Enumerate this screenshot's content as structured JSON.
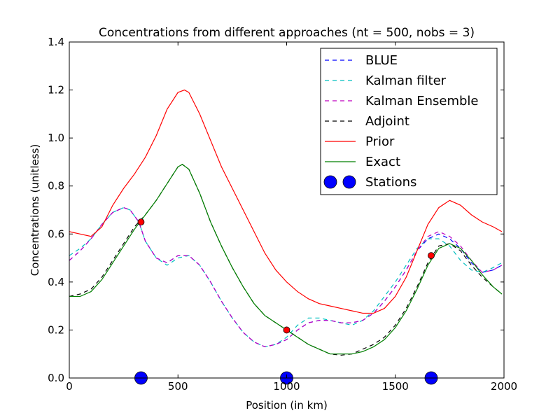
{
  "chart_data": {
    "type": "line",
    "title": "Concentrations from different approaches (nt = 500, nobs = 3)",
    "xlabel": "Position (in km)",
    "ylabel": "Concentrations (unitless)",
    "xlim": [
      0,
      2000
    ],
    "ylim": [
      0,
      1.4
    ],
    "xticks": [
      0,
      500,
      1000,
      1500,
      2000
    ],
    "xtick_labels": [
      "0",
      "500",
      "1000",
      "1500",
      "2000"
    ],
    "yticks": [
      0.0,
      0.2,
      0.4,
      0.6,
      0.8,
      1.0,
      1.2,
      1.4
    ],
    "ytick_labels": [
      "0.0",
      "0.2",
      "0.4",
      "0.6",
      "0.8",
      "1.0",
      "1.2",
      "1.4"
    ],
    "grid": false,
    "legend_position": "top-right",
    "series": [
      {
        "name": "BLUE",
        "color": "#0000ff",
        "style": "dashed",
        "x": [
          0,
          50,
          100,
          150,
          200,
          250,
          280,
          320,
          350,
          400,
          450,
          500,
          550,
          600,
          650,
          700,
          750,
          800,
          850,
          900,
          950,
          1000,
          1050,
          1100,
          1150,
          1200,
          1250,
          1300,
          1350,
          1400,
          1450,
          1500,
          1550,
          1600,
          1650,
          1700,
          1750,
          1800,
          1850,
          1900,
          1950,
          1990
        ],
        "y": [
          0.49,
          0.53,
          0.58,
          0.64,
          0.69,
          0.71,
          0.7,
          0.65,
          0.57,
          0.5,
          0.48,
          0.51,
          0.51,
          0.47,
          0.4,
          0.32,
          0.25,
          0.19,
          0.15,
          0.13,
          0.14,
          0.16,
          0.2,
          0.23,
          0.24,
          0.24,
          0.23,
          0.23,
          0.24,
          0.27,
          0.32,
          0.38,
          0.45,
          0.53,
          0.58,
          0.6,
          0.58,
          0.54,
          0.48,
          0.44,
          0.45,
          0.47
        ]
      },
      {
        "name": "Kalman filter",
        "color": "#00bfbf",
        "style": "dashed",
        "x": [
          0,
          50,
          100,
          150,
          200,
          250,
          280,
          320,
          350,
          400,
          450,
          500,
          550,
          600,
          650,
          700,
          750,
          800,
          850,
          900,
          950,
          1000,
          1050,
          1100,
          1150,
          1200,
          1250,
          1300,
          1350,
          1400,
          1450,
          1500,
          1550,
          1600,
          1650,
          1700,
          1750,
          1800,
          1850,
          1900,
          1950,
          1990
        ],
        "y": [
          0.51,
          0.54,
          0.58,
          0.64,
          0.69,
          0.71,
          0.7,
          0.65,
          0.57,
          0.5,
          0.47,
          0.5,
          0.51,
          0.47,
          0.4,
          0.32,
          0.25,
          0.19,
          0.15,
          0.13,
          0.14,
          0.17,
          0.22,
          0.25,
          0.25,
          0.24,
          0.23,
          0.22,
          0.24,
          0.28,
          0.34,
          0.4,
          0.47,
          0.54,
          0.58,
          0.58,
          0.55,
          0.49,
          0.45,
          0.44,
          0.46,
          0.48
        ]
      },
      {
        "name": "Kalman Ensemble",
        "color": "#bf00bf",
        "style": "dashed",
        "x": [
          0,
          50,
          100,
          150,
          200,
          250,
          280,
          320,
          350,
          400,
          450,
          500,
          550,
          600,
          650,
          700,
          750,
          800,
          850,
          900,
          950,
          1000,
          1050,
          1100,
          1150,
          1200,
          1250,
          1300,
          1350,
          1400,
          1450,
          1500,
          1550,
          1600,
          1650,
          1700,
          1750,
          1800,
          1850,
          1900,
          1950,
          1990
        ],
        "y": [
          0.49,
          0.53,
          0.58,
          0.64,
          0.69,
          0.71,
          0.7,
          0.65,
          0.57,
          0.5,
          0.48,
          0.51,
          0.51,
          0.47,
          0.4,
          0.32,
          0.25,
          0.19,
          0.15,
          0.13,
          0.14,
          0.16,
          0.2,
          0.23,
          0.24,
          0.24,
          0.23,
          0.23,
          0.24,
          0.27,
          0.32,
          0.38,
          0.45,
          0.53,
          0.59,
          0.61,
          0.59,
          0.55,
          0.49,
          0.44,
          0.45,
          0.47
        ]
      },
      {
        "name": "Adjoint",
        "color": "#000000",
        "style": "dashed",
        "x": [
          0,
          50,
          100,
          150,
          200,
          250,
          300,
          350,
          400,
          450,
          500,
          520,
          550,
          600,
          650,
          700,
          750,
          800,
          850,
          900,
          950,
          1000,
          1050,
          1100,
          1150,
          1200,
          1250,
          1300,
          1350,
          1400,
          1450,
          1500,
          1550,
          1600,
          1650,
          1700,
          1750,
          1800,
          1850,
          1900,
          1950,
          1990
        ],
        "y": [
          0.34,
          0.35,
          0.37,
          0.42,
          0.49,
          0.56,
          0.63,
          0.68,
          0.74,
          0.81,
          0.88,
          0.89,
          0.87,
          0.77,
          0.65,
          0.55,
          0.46,
          0.38,
          0.31,
          0.26,
          0.23,
          0.2,
          0.17,
          0.14,
          0.12,
          0.1,
          0.095,
          0.1,
          0.12,
          0.14,
          0.17,
          0.22,
          0.29,
          0.38,
          0.48,
          0.55,
          0.56,
          0.53,
          0.47,
          0.42,
          0.38,
          0.35
        ]
      },
      {
        "name": "Prior",
        "color": "#ff0000",
        "style": "solid",
        "x": [
          0,
          50,
          100,
          150,
          200,
          250,
          300,
          350,
          400,
          450,
          500,
          530,
          550,
          600,
          650,
          700,
          750,
          800,
          850,
          900,
          950,
          1000,
          1050,
          1100,
          1150,
          1200,
          1250,
          1300,
          1350,
          1400,
          1450,
          1500,
          1550,
          1600,
          1650,
          1700,
          1750,
          1800,
          1850,
          1900,
          1950,
          1990
        ],
        "y": [
          0.61,
          0.6,
          0.59,
          0.63,
          0.72,
          0.79,
          0.85,
          0.92,
          1.01,
          1.12,
          1.19,
          1.2,
          1.19,
          1.1,
          0.99,
          0.88,
          0.79,
          0.7,
          0.61,
          0.52,
          0.45,
          0.4,
          0.36,
          0.33,
          0.31,
          0.3,
          0.29,
          0.28,
          0.27,
          0.27,
          0.29,
          0.34,
          0.42,
          0.53,
          0.64,
          0.71,
          0.74,
          0.72,
          0.68,
          0.65,
          0.63,
          0.61
        ]
      },
      {
        "name": "Exact",
        "color": "#008000",
        "style": "solid",
        "x": [
          0,
          50,
          100,
          150,
          200,
          250,
          300,
          350,
          400,
          450,
          500,
          520,
          550,
          600,
          650,
          700,
          750,
          800,
          850,
          900,
          950,
          1000,
          1050,
          1100,
          1150,
          1200,
          1250,
          1300,
          1350,
          1400,
          1450,
          1500,
          1550,
          1600,
          1650,
          1700,
          1750,
          1800,
          1850,
          1900,
          1950,
          1990
        ],
        "y": [
          0.34,
          0.34,
          0.36,
          0.41,
          0.48,
          0.55,
          0.62,
          0.68,
          0.74,
          0.81,
          0.88,
          0.89,
          0.87,
          0.77,
          0.65,
          0.55,
          0.46,
          0.38,
          0.31,
          0.26,
          0.23,
          0.2,
          0.17,
          0.14,
          0.12,
          0.1,
          0.1,
          0.1,
          0.11,
          0.13,
          0.16,
          0.21,
          0.28,
          0.37,
          0.47,
          0.54,
          0.56,
          0.54,
          0.49,
          0.43,
          0.38,
          0.35
        ]
      }
    ],
    "observations": {
      "color": "#ff0000",
      "points": [
        {
          "x": 330,
          "y": 0.65
        },
        {
          "x": 1000,
          "y": 0.2
        },
        {
          "x": 1665,
          "y": 0.51
        }
      ]
    },
    "stations": {
      "name": "Stations",
      "color": "#0000ff",
      "x": [
        330,
        1000,
        1665
      ],
      "y": [
        0,
        0,
        0
      ]
    }
  }
}
